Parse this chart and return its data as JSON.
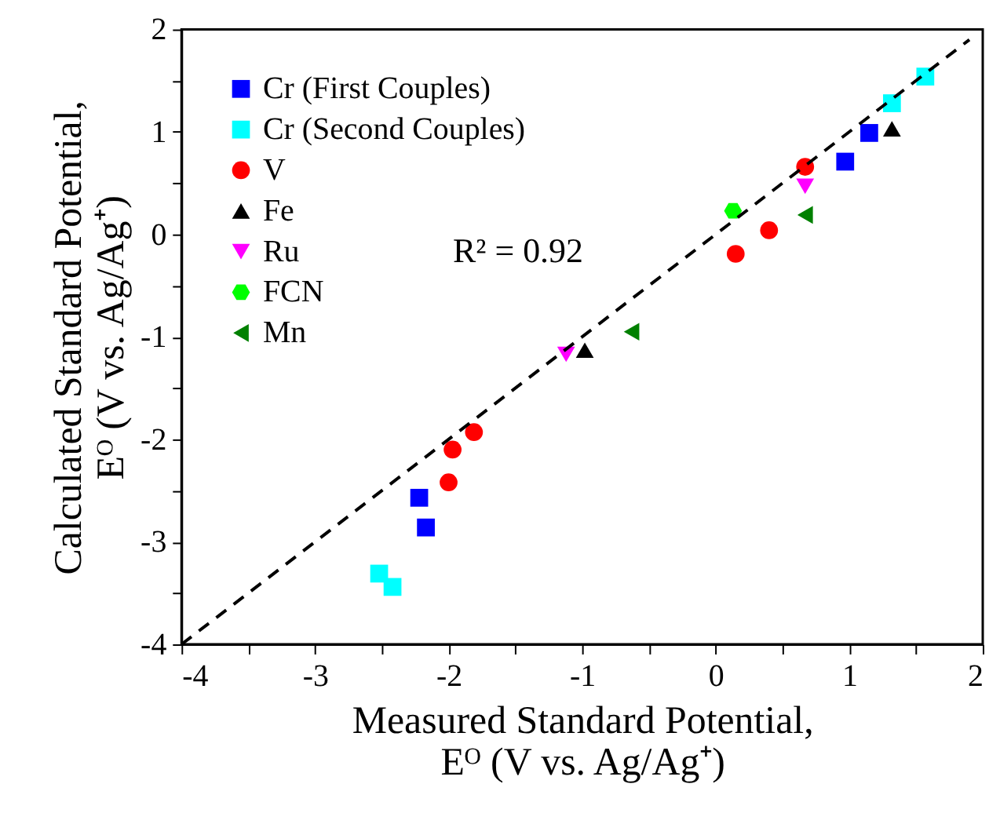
{
  "chart_data": {
    "type": "scatter",
    "xlabel": "Measured Standard Potential,\nEᴼ (V vs. Ag/Ag⁺)",
    "ylabel": "Calculated Standard Potential,\nEᴼ (V vs. Ag/Ag⁺)",
    "annotations": [
      "R² = 0.92"
    ],
    "xlim": [
      -4,
      2
    ],
    "ylim": [
      -4,
      2
    ],
    "xticks": [
      -4,
      {
        "value": -3.5,
        "label": null
      },
      -3,
      {
        "value": -2.5,
        "label": null
      },
      -2,
      {
        "value": -1.5,
        "label": null
      },
      -1,
      {
        "value": -0.5,
        "label": null
      },
      0,
      {
        "value": 0.5,
        "label": null
      },
      1,
      {
        "value": 1.5,
        "label": null
      },
      2
    ],
    "yticks": [
      -4,
      {
        "value": -3.5,
        "label": null
      },
      -3,
      {
        "value": -2.5,
        "label": null
      },
      -2,
      {
        "value": -1.5,
        "label": null
      },
      -1,
      {
        "value": -0.5,
        "label": null
      },
      0,
      {
        "value": 0.5,
        "label": null
      },
      1,
      {
        "value": 1.5,
        "label": null
      },
      2
    ],
    "grid": false,
    "legend": "top left",
    "series": [
      {
        "name": "Cr (First Couples)",
        "color": "#0000ff",
        "marker": "square",
        "x": [
          -2.22,
          -2.17,
          0.97,
          1.15
        ],
        "values": [
          -2.57,
          -2.86,
          0.71,
          0.99
        ]
      },
      {
        "name": "Cr (Second Couples)",
        "color": "#00ffff",
        "marker": "square",
        "x": [
          -2.52,
          -2.42,
          1.32,
          1.57
        ],
        "values": [
          -3.31,
          -3.44,
          1.28,
          1.54
        ]
      },
      {
        "name": "V",
        "color": "#ff0000",
        "marker": "circle",
        "x": [
          -2.0,
          -1.97,
          -1.81,
          0.15,
          0.4,
          0.67
        ],
        "values": [
          -2.42,
          -2.1,
          -1.93,
          -0.19,
          0.04,
          0.66
        ]
      },
      {
        "name": "Fe",
        "color": "#000000",
        "marker": "triangle",
        "x": [
          -0.98,
          1.32
        ],
        "values": [
          -1.13,
          1.03
        ]
      },
      {
        "name": "Ru",
        "color": "#ff00ff",
        "marker": "triangle-down",
        "x": [
          -1.12,
          0.67
        ],
        "values": [
          -1.17,
          0.47
        ]
      },
      {
        "name": "FCN",
        "color": "#00ff00",
        "x": [
          0.13
        ],
        "values": [
          0.23
        ]
      },
      {
        "name": "Mn",
        "color": "#008000",
        "marker": "triangle-left",
        "x": [
          -0.63,
          0.67
        ],
        "values": [
          -0.95,
          0.19
        ]
      },
      {
        "type": "line",
        "color": "#000000",
        "line_style": "dashed",
        "x": [
          -4,
          1.9
        ],
        "values": [
          -4,
          1.9
        ]
      }
    ]
  }
}
